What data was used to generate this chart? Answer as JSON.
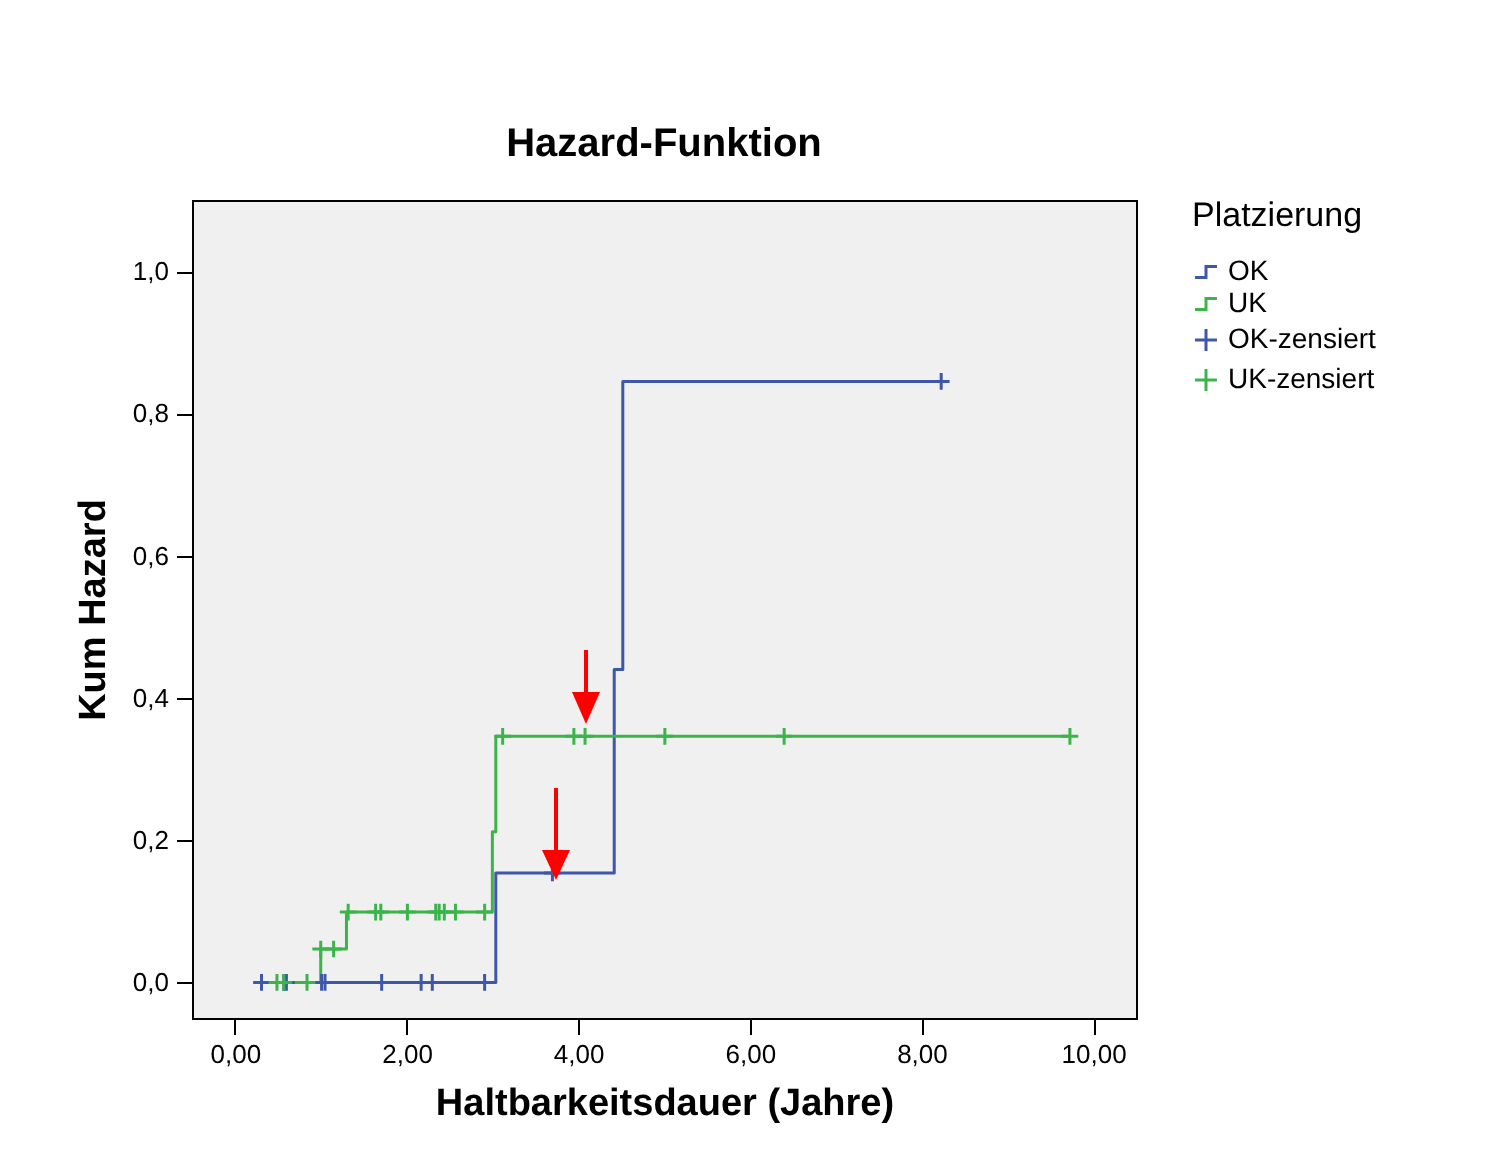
{
  "chart_data": {
    "type": "step",
    "title": "Hazard-Funktion",
    "xlabel": "Haltbarkeitsdauer (Jahre)",
    "ylabel": "Kum Hazard",
    "legend_title": "Platzierung",
    "legend": "right",
    "grid": false,
    "xlim": [
      -0.5,
      10.5
    ],
    "ylim": [
      -0.05,
      1.1
    ],
    "xticks": [
      {
        "value": 0,
        "label": "0,00"
      },
      {
        "value": 2,
        "label": "2,00"
      },
      {
        "value": 4,
        "label": "4,00"
      },
      {
        "value": 6,
        "label": "6,00"
      },
      {
        "value": 8,
        "label": "8,00"
      },
      {
        "value": 10,
        "label": "10,00"
      }
    ],
    "yticks": [
      {
        "value": 0,
        "label": "0,0"
      },
      {
        "value": 0.2,
        "label": "0,2"
      },
      {
        "value": 0.4,
        "label": "0,4"
      },
      {
        "value": 0.6,
        "label": "0,6"
      },
      {
        "value": 0.8,
        "label": "0,8"
      },
      {
        "value": 1,
        "label": "1,0"
      }
    ],
    "series": [
      {
        "name": "OK",
        "color": "#3e57a8",
        "x": [
          0.31,
          3.04,
          4.42,
          4.52,
          8.23
        ],
        "values": [
          0,
          0.154,
          0.44,
          0.845,
          0.845
        ]
      },
      {
        "name": "UK",
        "color": "#3bb54a",
        "x": [
          0.49,
          1.0,
          1.3,
          3.0,
          3.04,
          9.73
        ],
        "values": [
          0,
          0.047,
          0.099,
          0.212,
          0.346,
          0.346
        ]
      },
      {
        "name": "OK-zensiert",
        "type": "scatter",
        "marker": "cross",
        "color": "#3e57a8",
        "x": [
          0.31,
          0.57,
          0.6,
          1.01,
          1.05,
          1.71,
          2.17,
          2.3,
          2.91,
          3.7,
          8.23
        ],
        "values": [
          0,
          0,
          0,
          0,
          0,
          0,
          0,
          0,
          0,
          0.154,
          0.845
        ]
      },
      {
        "name": "UK-zensiert",
        "type": "scatter",
        "marker": "cross",
        "color": "#3bb54a",
        "x": [
          0.49,
          0.57,
          0.84,
          1.0,
          1.15,
          1.32,
          1.64,
          1.7,
          2.01,
          2.34,
          2.38,
          2.44,
          2.57,
          2.91,
          3.12,
          3.95,
          4.08,
          5.01,
          6.4,
          9.73
        ],
        "values": [
          0,
          0,
          0,
          0.047,
          0.047,
          0.099,
          0.099,
          0.099,
          0.099,
          0.099,
          0.099,
          0.099,
          0.099,
          0.099,
          0.346,
          0.346,
          0.346,
          0.346,
          0.346,
          0.346
        ]
      }
    ]
  }
}
